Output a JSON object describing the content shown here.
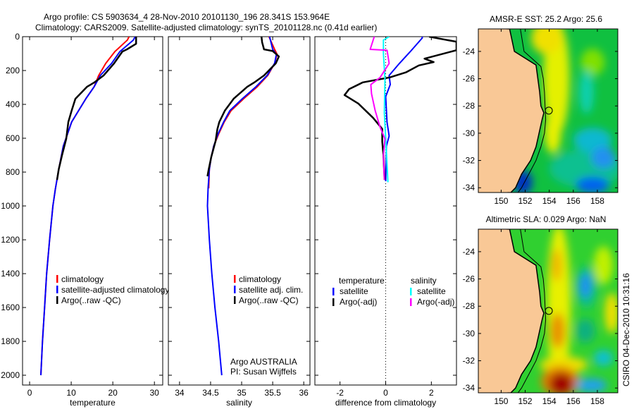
{
  "title": {
    "line1": "Argo profile: CS 5903634_4 28-Nov-2010 20101130_196 28.341S 153.964E",
    "line2": "Climatology: CARS2009. Satellite-adjusted climatology: synTS_20101128.nc (0.41d earlier)"
  },
  "side_label": "CSIRO 04-Dec-2010 10:31:16",
  "colors": {
    "clim": "#ff0000",
    "sat": "#0000ff",
    "argo": "#000000",
    "sal_sat": "#00ffff",
    "sal_argo": "#ff00ff",
    "land": "#f9c896"
  },
  "chart_data": [
    {
      "type": "line",
      "id": "temperature",
      "xlabel": "temperature",
      "ylabel": "",
      "xlim": [
        -1.7,
        32
      ],
      "ylim": [
        2058,
        0
      ],
      "xticks": [
        0,
        10,
        20,
        30
      ],
      "xtick_labels": [
        "0",
        "10",
        "20",
        "30"
      ],
      "yticks": [
        0,
        200,
        400,
        600,
        800,
        1000,
        1200,
        1400,
        1600,
        1800,
        2000
      ],
      "ytick_labels": [
        "0",
        "200",
        "400",
        "600",
        "800",
        "1000",
        "1200",
        "1400",
        "1600",
        "1800",
        "2000"
      ],
      "legend": [
        "climatology",
        "satellite-adjusted climatology",
        "Argo(..raw -QC)"
      ],
      "series": [
        {
          "name": "climatology",
          "color": "#ff0000",
          "depth": [
            0,
            20,
            88,
            158,
            229,
            296,
            367,
            504,
            646,
            783,
            900,
            1000,
            1200,
            1400,
            1600,
            1800,
            2000
          ],
          "values": [
            23.9,
            23.5,
            20.5,
            18.3,
            16.6,
            15.5,
            13.5,
            10.1,
            8.1,
            7.0,
            6.2,
            5.6,
            4.8,
            4.1,
            3.6,
            3.1,
            2.7
          ]
        },
        {
          "name": "satellite-adjusted climatology",
          "color": "#0000ff",
          "depth": [
            0,
            21,
            88,
            158,
            229,
            296,
            367,
            504,
            646,
            783,
            900,
            1000,
            1200,
            1400,
            1600,
            1800,
            2000
          ],
          "values": [
            25.4,
            24.9,
            21.7,
            19.7,
            17.0,
            15.5,
            13.5,
            10.1,
            8.1,
            7.0,
            6.2,
            5.6,
            4.8,
            4.1,
            3.6,
            3.1,
            2.7
          ]
        },
        {
          "name": "Argo(..raw -QC)",
          "color": "#000000",
          "depth": [
            0,
            42,
            75,
            88,
            158,
            229,
            271,
            296,
            367,
            437,
            504,
            604,
            700,
            783,
            846
          ],
          "values": [
            25.6,
            25.6,
            23.4,
            22.3,
            20.3,
            17.8,
            15.5,
            13.8,
            11.0,
            10.1,
            9.3,
            8.8,
            7.8,
            7.0,
            6.6
          ]
        }
      ]
    },
    {
      "type": "line",
      "id": "salinity",
      "xlabel": "salinity",
      "xlim": [
        33.82,
        36.1
      ],
      "ylim": [
        2058,
        0
      ],
      "xticks": [
        34,
        34.5,
        35,
        35.5,
        36
      ],
      "xtick_labels": [
        "34",
        "34.5",
        "35",
        "35.5",
        "36"
      ],
      "legend": [
        "climatology",
        "satellite adj. clim.",
        "Argo(..raw -QC)"
      ],
      "annotation": [
        "Argo AUSTRALIA",
        "PI: Susan Wijffels"
      ],
      "series": [
        {
          "name": "climatology",
          "color": "#ff0000",
          "depth": [
            0,
            75,
            104,
            158,
            229,
            296,
            367,
            437,
            504,
            575,
            646,
            713,
            783,
            896
          ],
          "values": [
            35.44,
            35.53,
            35.57,
            35.53,
            35.42,
            35.25,
            35.03,
            34.83,
            34.72,
            34.63,
            34.55,
            34.51,
            34.48,
            34.47
          ]
        },
        {
          "name": "satellite adj. clim.",
          "color": "#0000ff",
          "depth": [
            0,
            75,
            104,
            158,
            229,
            296,
            367,
            437,
            504,
            575,
            646,
            713,
            783,
            896,
            1000,
            1200,
            1400,
            1600,
            1800,
            2000
          ],
          "values": [
            35.45,
            35.5,
            35.56,
            35.53,
            35.41,
            35.23,
            35.01,
            34.81,
            34.71,
            34.62,
            34.55,
            34.51,
            34.48,
            34.46,
            34.45,
            34.48,
            34.52,
            34.57,
            34.63,
            34.68
          ]
        },
        {
          "name": "Argo(..raw -QC)",
          "color": "#000000",
          "depth": [
            0,
            33,
            75,
            85,
            117,
            158,
            229,
            271,
            296,
            367,
            437,
            504,
            546,
            617,
            713,
            783,
            825
          ],
          "values": [
            35.32,
            35.33,
            35.36,
            35.5,
            35.6,
            35.55,
            35.36,
            35.2,
            35.09,
            34.87,
            34.73,
            34.64,
            34.61,
            34.58,
            34.51,
            34.47,
            34.45
          ]
        }
      ]
    },
    {
      "type": "line",
      "id": "difference",
      "xlabel": "difference from climatology",
      "xlim": [
        -3.1,
        3.1
      ],
      "ylim": [
        2058,
        0
      ],
      "xticks": [
        -2,
        0,
        2
      ],
      "xtick_labels": [
        "-2",
        "0",
        "2"
      ],
      "legend_headers": [
        "temperature",
        "salinity"
      ],
      "legend": [
        "satellite",
        "Argo(-adj)",
        "satellite",
        "Argo(-adj)"
      ],
      "series": [
        {
          "name": "temperature satellite",
          "color": "#0000ff",
          "depth": [
            0,
            8,
            88,
            158,
            229,
            283,
            354,
            504,
            587,
            646,
            854
          ],
          "values": [
            1.6,
            1.6,
            1.08,
            0.6,
            0.15,
            0.2,
            0.0,
            0.06,
            0.15,
            0.03,
            0.0
          ]
        },
        {
          "name": "temperature Argo(-adj)",
          "color": "#000000",
          "depth": [
            0,
            30,
            80,
            130,
            150,
            170,
            210,
            240,
            270,
            310,
            345,
            395,
            480,
            545,
            620,
            700,
            846
          ],
          "values": [
            1.9,
            3.1,
            3.1,
            1.7,
            2.1,
            1.45,
            0.9,
            0.2,
            -1.0,
            -1.6,
            -1.8,
            -1.2,
            -0.55,
            -0.15,
            -0.15,
            -0.1,
            -0.05
          ]
        },
        {
          "name": "salinity satellite",
          "color": "#00ffff",
          "depth": [
            0,
            20,
            100,
            250,
            450,
            600,
            860
          ],
          "values": [
            0.15,
            -0.1,
            -0.1,
            -0.03,
            -0.06,
            0.0,
            0.1
          ]
        },
        {
          "name": "salinity Argo(-adj)",
          "color": "#ff00ff",
          "depth": [
            0,
            75,
            80,
            104,
            158,
            242,
            283,
            337,
            437,
            533,
            604,
            700,
            846
          ],
          "values": [
            -0.5,
            -0.68,
            0.06,
            0.09,
            0.15,
            -0.25,
            -0.65,
            -0.62,
            -0.46,
            -0.25,
            -0.03,
            -0.1,
            -0.06
          ]
        }
      ]
    },
    {
      "type": "heatmap",
      "id": "sst-map",
      "title": "AMSR-E SST: 25.2 Argo: 25.6",
      "xlim": [
        148.1,
        159.7
      ],
      "ylim": [
        -34.35,
        -22.35
      ],
      "xticks": [
        150,
        152,
        154,
        156,
        158
      ],
      "xtick_labels": [
        "150",
        "152",
        "154",
        "156",
        "158"
      ],
      "yticks": [
        -24,
        -26,
        -28,
        -30,
        -32,
        -34
      ],
      "ytick_labels": [
        "-24",
        "-26",
        "-28",
        "-30",
        "-32",
        "-34"
      ],
      "base_color": "#10c040",
      "features": [
        {
          "lon": 154.6,
          "lat": -26.0,
          "rlon": 1.1,
          "rlat": 4.2,
          "color": "#e4f000"
        },
        {
          "lon": 153.8,
          "lat": -23.0,
          "rlon": 1.3,
          "rlat": 1.2,
          "color": "#f0e000"
        },
        {
          "lon": 154.3,
          "lat": -30.0,
          "rlon": 0.7,
          "rlat": 1.5,
          "color": "#e8f000"
        },
        {
          "lon": 157.6,
          "lat": -24.8,
          "rlon": 1.0,
          "rlat": 1.0,
          "color": "#80e000"
        },
        {
          "lon": 157.1,
          "lat": -27.0,
          "rlon": 0.6,
          "rlat": 1.6,
          "color": "#10d0b0"
        },
        {
          "lon": 157.0,
          "lat": -32.6,
          "rlon": 3.0,
          "rlat": 1.4,
          "color": "#10c090"
        },
        {
          "lon": 157.6,
          "lat": -30.5,
          "rlon": 1.6,
          "rlat": 0.9,
          "color": "#10b8d0"
        },
        {
          "lon": 158.5,
          "lat": -31.8,
          "rlon": 1.0,
          "rlat": 0.8,
          "color": "#2090f0"
        },
        {
          "lon": 157.6,
          "lat": -33.8,
          "rlon": 1.4,
          "rlat": 0.6,
          "color": "#0060f0"
        },
        {
          "lon": 151.8,
          "lat": -33.6,
          "rlon": 0.8,
          "rlat": 0.9,
          "color": "#0030c0"
        }
      ]
    },
    {
      "type": "heatmap",
      "id": "sla-map",
      "title": "Altimetric SLA: 0.029 Argo: NaN",
      "xlim": [
        148.1,
        159.7
      ],
      "ylim": [
        -34.35,
        -22.35
      ],
      "xticks": [
        150,
        152,
        154,
        156,
        158
      ],
      "xtick_labels": [
        "150",
        "152",
        "154",
        "156",
        "158"
      ],
      "yticks": [
        -24,
        -26,
        -28,
        -30,
        -32,
        -34
      ],
      "ytick_labels": [
        "-24",
        "-26",
        "-28",
        "-30",
        "-32",
        "-34"
      ],
      "base_color": "#30d030",
      "features": [
        {
          "lon": 154.8,
          "lat": -28.0,
          "rlon": 1.0,
          "rlat": 6.0,
          "color": "#e8f000"
        },
        {
          "lon": 154.6,
          "lat": -25.0,
          "rlon": 0.4,
          "rlat": 1.2,
          "color": "#f0b000"
        },
        {
          "lon": 154.7,
          "lat": -29.8,
          "rlon": 0.6,
          "rlat": 1.3,
          "color": "#e89000"
        },
        {
          "lon": 155.2,
          "lat": -32.3,
          "rlon": 2.0,
          "rlat": 0.6,
          "color": "#f0e000"
        },
        {
          "lon": 154.9,
          "lat": -33.5,
          "rlon": 1.6,
          "rlat": 1.1,
          "color": "#e08000"
        },
        {
          "lon": 155.0,
          "lat": -33.7,
          "rlon": 1.0,
          "rlat": 0.8,
          "color": "#a00000"
        },
        {
          "lon": 158.5,
          "lat": -25.0,
          "rlon": 0.8,
          "rlat": 1.4,
          "color": "#c0f000"
        },
        {
          "lon": 159.2,
          "lat": -28.5,
          "rlon": 0.6,
          "rlat": 1.5,
          "color": "#f0e000"
        },
        {
          "lon": 157.1,
          "lat": -26.6,
          "rlon": 0.9,
          "rlat": 1.6,
          "color": "#10c080"
        },
        {
          "lon": 157.0,
          "lat": -26.5,
          "rlon": 0.5,
          "rlat": 0.9,
          "color": "#2090f0"
        },
        {
          "lon": 157.0,
          "lat": -29.8,
          "rlon": 0.8,
          "rlat": 0.9,
          "color": "#10b080"
        },
        {
          "lon": 158.5,
          "lat": -31.8,
          "rlon": 0.8,
          "rlat": 0.6,
          "color": "#10c0d0"
        },
        {
          "lon": 157.5,
          "lat": -33.8,
          "rlon": 1.3,
          "rlat": 0.5,
          "color": "#20a0f0"
        }
      ]
    }
  ],
  "map_common": {
    "argo_location": {
      "lon": 153.964,
      "lat": -28.341
    },
    "coastline": [
      [
        150.7,
        -22.35
      ],
      [
        151.1,
        -24.0
      ],
      [
        152.9,
        -25.0
      ],
      [
        153.05,
        -26.0
      ],
      [
        153.2,
        -27.0
      ],
      [
        153.3,
        -28.0
      ],
      [
        153.55,
        -28.5
      ],
      [
        153.4,
        -29.0
      ],
      [
        153.15,
        -30.0
      ],
      [
        152.9,
        -31.0
      ],
      [
        152.45,
        -32.0
      ],
      [
        151.7,
        -33.0
      ],
      [
        151.2,
        -34.0
      ],
      [
        150.8,
        -34.35
      ]
    ],
    "isobath": [
      [
        151.6,
        -22.35
      ],
      [
        151.9,
        -24.0
      ],
      [
        153.3,
        -25.1
      ],
      [
        153.5,
        -26.0
      ],
      [
        153.6,
        -27.0
      ],
      [
        153.65,
        -28.0
      ],
      [
        153.7,
        -29.0
      ],
      [
        153.6,
        -30.0
      ],
      [
        153.3,
        -31.0
      ],
      [
        152.9,
        -32.0
      ],
      [
        152.3,
        -33.0
      ],
      [
        151.7,
        -34.0
      ],
      [
        151.4,
        -34.35
      ]
    ]
  }
}
